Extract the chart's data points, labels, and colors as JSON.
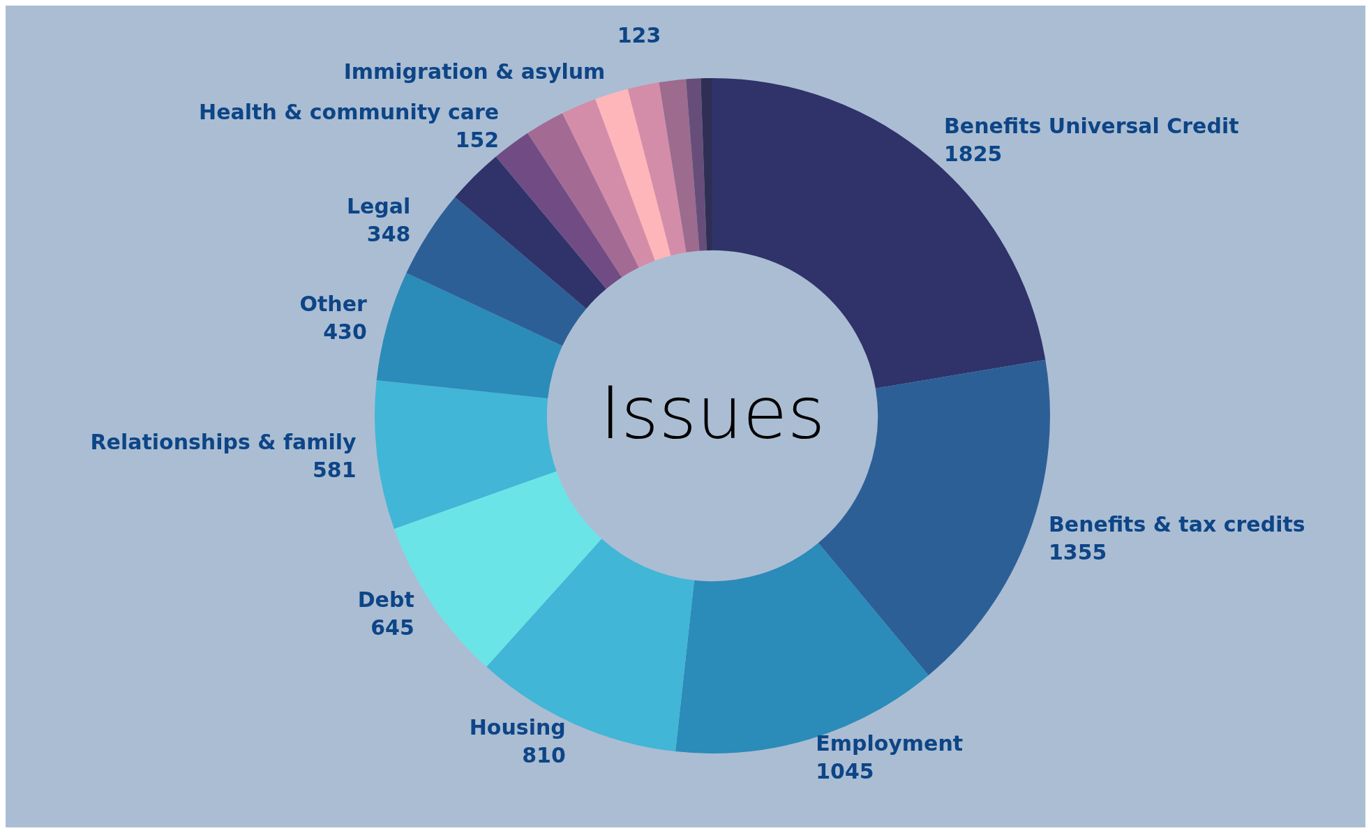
{
  "chart_data": {
    "type": "donut",
    "title": "Issues",
    "categories": [
      "Benefits Universal Credit",
      "Benefits & tax credits",
      "Employment",
      "Housing",
      "Debt",
      "Relationships & family",
      "Other",
      "Legal",
      null,
      "Health & community care",
      null,
      null,
      "Immigration & asylum",
      null,
      null,
      null,
      null
    ],
    "values": [
      1825,
      1355,
      1045,
      810,
      645,
      581,
      430,
      348,
      222,
      152,
      154,
      138,
      131,
      123,
      104,
      57,
      45
    ],
    "value_labels": [
      "1825",
      "1355",
      "1045",
      "810",
      "645",
      "581",
      "430",
      "348",
      null,
      "152",
      null,
      null,
      null,
      "123",
      null,
      null,
      null
    ],
    "colors": [
      "#2f3369",
      "#2d5f97",
      "#2b8bb9",
      "#41b6d6",
      "#6be4e8",
      "#41b6d6",
      "#2b8bb9",
      "#2d5f97",
      "#2f3369",
      "#714c84",
      "#a36b93",
      "#d48da8",
      "#ffb6ba",
      "#d48da8",
      "#9c6b8e",
      "#674e7a",
      "#2f2f55"
    ],
    "legend": false
  }
}
